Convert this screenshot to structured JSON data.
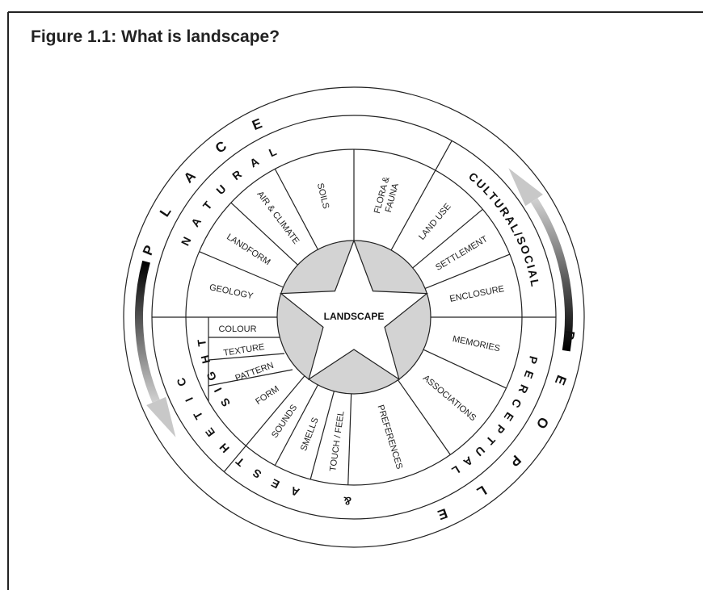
{
  "title": "Figure 1.1: What is landscape?",
  "center": "LANDSCAPE",
  "outer_ring": [
    "PLACE",
    "PEOPLE"
  ],
  "middle_ring": [
    "NATURAL",
    "CULTURAL/SOCIAL",
    "PERCEPTUAL",
    "&",
    "AESTHETIC"
  ],
  "inner_ring": [
    "SIGHT"
  ],
  "sectors": [
    [
      "GEOLOGY"
    ],
    [
      "LANDFORM"
    ],
    [
      "AIR & CLIMATE"
    ],
    [
      "SOILS"
    ],
    [
      "FLORA &",
      "FAUNA"
    ],
    [
      "LAND USE"
    ],
    [
      "SETTLEMENT"
    ],
    [
      "ENCLOSURE"
    ],
    [
      "MEMORIES"
    ],
    [
      "ASSOCIATIONS"
    ],
    [
      "PREFERENCES"
    ],
    [
      "TOUCH / FEEL"
    ],
    [
      "SMELLS"
    ],
    [
      "SOUNDS"
    ]
  ],
  "sight_items": [
    "COLOUR",
    "TEXTURE",
    "PATTERN",
    "FORM"
  ]
}
